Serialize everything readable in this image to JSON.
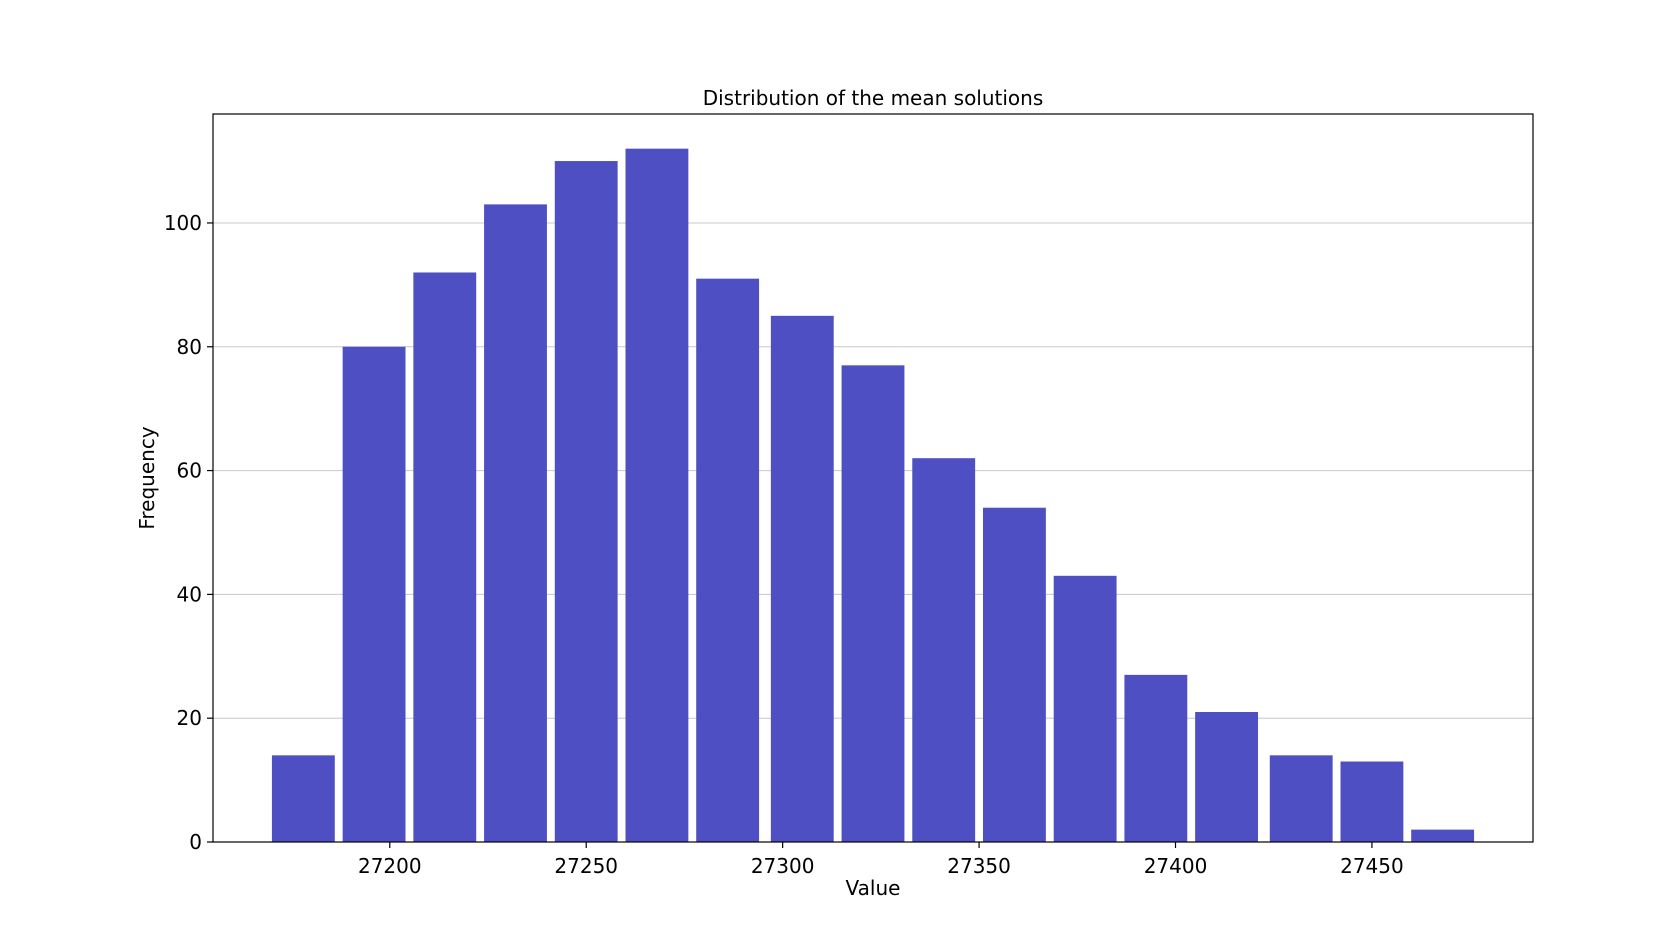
{
  "chart_data": {
    "type": "bar",
    "title": "Distribution of the mean solutions",
    "xlabel": "Value",
    "ylabel": "Frequency",
    "x_bins": [
      {
        "x_start": 27170,
        "x_end": 27186,
        "value": 14
      },
      {
        "x_start": 27188,
        "x_end": 27204,
        "value": 80
      },
      {
        "x_start": 27206,
        "x_end": 27222,
        "value": 92
      },
      {
        "x_start": 27224,
        "x_end": 27240,
        "value": 103
      },
      {
        "x_start": 27242,
        "x_end": 27258,
        "value": 110
      },
      {
        "x_start": 27260,
        "x_end": 27276,
        "value": 112
      },
      {
        "x_start": 27278,
        "x_end": 27294,
        "value": 91
      },
      {
        "x_start": 27297,
        "x_end": 27313,
        "value": 85
      },
      {
        "x_start": 27315,
        "x_end": 27331,
        "value": 77
      },
      {
        "x_start": 27333,
        "x_end": 27349,
        "value": 62
      },
      {
        "x_start": 27351,
        "x_end": 27367,
        "value": 54
      },
      {
        "x_start": 27369,
        "x_end": 27385,
        "value": 43
      },
      {
        "x_start": 27387,
        "x_end": 27403,
        "value": 27
      },
      {
        "x_start": 27405,
        "x_end": 27421,
        "value": 21
      },
      {
        "x_start": 27424,
        "x_end": 27440,
        "value": 14
      },
      {
        "x_start": 27442,
        "x_end": 27458,
        "value": 13
      },
      {
        "x_start": 27460,
        "x_end": 27476,
        "value": 2
      }
    ],
    "xlim": [
      27155,
      27491
    ],
    "ylim": [
      0,
      117.6
    ],
    "x_ticks": [
      27200,
      27250,
      27300,
      27350,
      27400,
      27450
    ],
    "y_ticks": [
      0,
      20,
      40,
      60,
      80,
      100
    ],
    "grid": "horizontal",
    "bar_color": "#4f4fc4",
    "grid_color": "#c8c8c8",
    "axis_color": "#000000"
  }
}
